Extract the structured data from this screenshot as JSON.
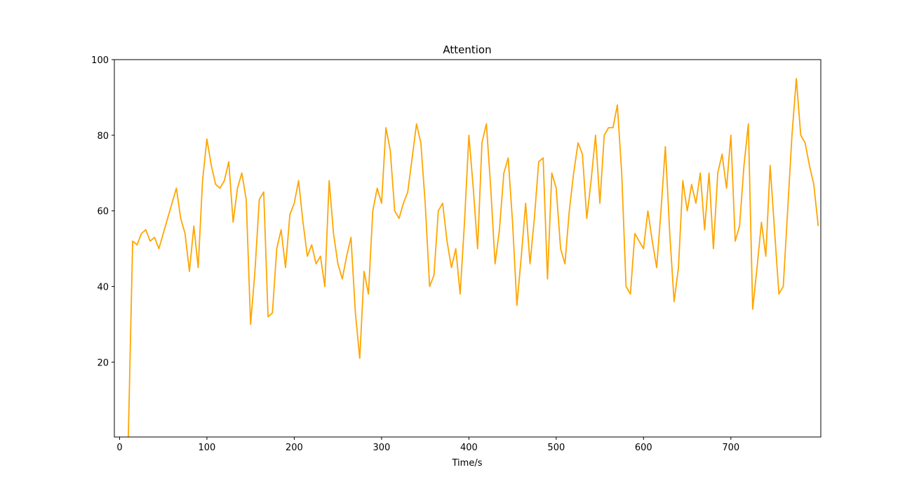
{
  "chart_data": {
    "type": "line",
    "title": "Attention",
    "xlabel": "Time/s",
    "x": [
      10,
      15,
      20,
      25,
      30,
      35,
      40,
      45,
      50,
      55,
      60,
      65,
      70,
      75,
      80,
      85,
      90,
      95,
      100,
      105,
      110,
      115,
      120,
      125,
      130,
      135,
      140,
      145,
      150,
      155,
      160,
      165,
      170,
      175,
      180,
      185,
      190,
      195,
      200,
      205,
      210,
      215,
      220,
      225,
      230,
      235,
      240,
      245,
      250,
      255,
      260,
      265,
      270,
      275,
      280,
      285,
      290,
      295,
      300,
      305,
      310,
      315,
      320,
      325,
      330,
      335,
      340,
      345,
      350,
      355,
      360,
      365,
      370,
      375,
      380,
      385,
      390,
      395,
      400,
      405,
      410,
      415,
      420,
      425,
      430,
      435,
      440,
      445,
      450,
      455,
      460,
      465,
      470,
      475,
      480,
      485,
      490,
      495,
      500,
      505,
      510,
      515,
      520,
      525,
      530,
      535,
      540,
      545,
      550,
      555,
      560,
      565,
      570,
      575,
      580,
      585,
      590,
      595,
      600,
      605,
      610,
      615,
      620,
      625,
      630,
      635,
      640,
      645,
      650,
      655,
      660,
      665,
      670,
      675,
      680,
      685,
      690,
      695,
      700,
      705,
      710,
      715,
      720,
      725,
      730,
      735,
      740,
      745,
      750,
      755,
      760,
      765,
      770,
      775,
      780,
      785,
      790,
      795,
      800
    ],
    "series": [
      {
        "name": "Attention",
        "color": "#ffa500",
        "values": [
          0,
          52,
          51,
          54,
          55,
          52,
          53,
          50,
          54,
          58,
          62,
          66,
          58,
          54,
          44,
          56,
          45,
          68,
          79,
          72,
          67,
          66,
          68,
          73,
          57,
          66,
          70,
          63,
          30,
          44,
          63,
          65,
          32,
          33,
          50,
          55,
          45,
          59,
          62,
          68,
          57,
          48,
          51,
          46,
          48,
          40,
          68,
          54,
          46,
          42,
          48,
          53,
          33,
          21,
          44,
          38,
          60,
          66,
          62,
          82,
          76,
          60,
          58,
          62,
          65,
          74,
          83,
          78,
          62,
          40,
          43,
          60,
          62,
          52,
          45,
          50,
          38,
          57,
          80,
          66,
          50,
          78,
          83,
          66,
          46,
          55,
          70,
          74,
          57,
          35,
          48,
          62,
          46,
          58,
          73,
          74,
          42,
          70,
          66,
          50,
          46,
          60,
          70,
          78,
          75,
          58,
          68,
          80,
          62,
          80,
          82,
          82,
          88,
          70,
          40,
          38,
          54,
          52,
          50,
          60,
          52,
          45,
          60,
          77,
          54,
          36,
          45,
          68,
          60,
          67,
          62,
          70,
          55,
          70,
          50,
          70,
          75,
          66,
          80,
          52,
          56,
          72,
          83,
          34,
          45,
          57,
          48,
          72,
          55,
          38,
          40,
          60,
          80,
          95,
          80,
          78,
          72,
          67,
          56
        ]
      }
    ],
    "xlim": [
      -6,
      803
    ],
    "xticks": [
      0,
      100,
      200,
      300,
      400,
      500,
      600,
      700
    ],
    "ylim": [
      0.2,
      100
    ],
    "yticks": [
      20,
      40,
      60,
      80,
      100
    ]
  }
}
